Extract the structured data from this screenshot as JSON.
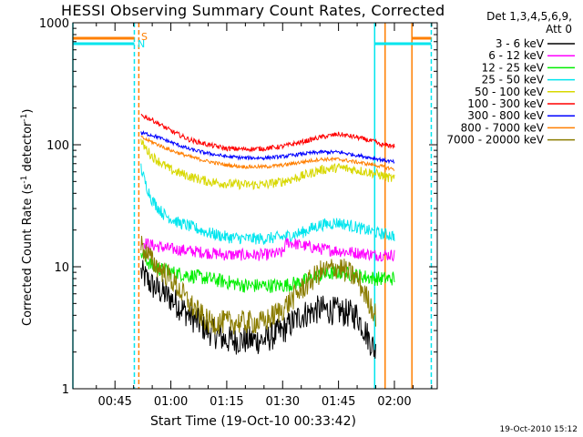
{
  "chart_data": {
    "type": "line",
    "title": "HESSI Observing Summary Count Rates, Corrected",
    "xlabel": "Start Time (19-Oct-10 00:33:42)",
    "ylabel_main": "Corrected Count Rate (s",
    "ylabel_sup1": "-1",
    "ylabel_mid": " detector",
    "ylabel_sup2": "-1",
    "ylabel_end": ")",
    "yscale": "log",
    "ylim": [
      1,
      1000
    ],
    "xlim_minutes": [
      33.7,
      131.5
    ],
    "x_ticks": [
      {
        "m": 45,
        "label": "00:45"
      },
      {
        "m": 60,
        "label": "01:00"
      },
      {
        "m": 75,
        "label": "01:15"
      },
      {
        "m": 90,
        "label": "01:30"
      },
      {
        "m": 105,
        "label": "01:45"
      },
      {
        "m": 120,
        "label": "02:00"
      }
    ],
    "y_ticks": [
      {
        "v": 1,
        "label": "1"
      },
      {
        "v": 10,
        "label": "10"
      },
      {
        "v": 100,
        "label": "100"
      },
      {
        "v": 1000,
        "label": "1000"
      }
    ],
    "legend_header": [
      "Det 1,3,4,5,6,9,",
      "Att 0"
    ],
    "flag_labels": {
      "S": "S",
      "N": "N"
    },
    "flag_colors": {
      "S": "#ff7f00",
      "N": "#00e5ee"
    },
    "timestamp": "19-Oct-2010 15:12",
    "vertical_markers": [
      {
        "m": 33.7,
        "color": "#00e5ee",
        "dash": false
      },
      {
        "m": 50.2,
        "color": "#00e5ee",
        "dash": true
      },
      {
        "m": 51.4,
        "color": "#ff7f00",
        "dash": true
      },
      {
        "m": 114.7,
        "color": "#00e5ee",
        "dash": false
      },
      {
        "m": 117.5,
        "color": "#ff7f00",
        "dash": false
      },
      {
        "m": 124.7,
        "color": "#ff7f00",
        "dash": false
      },
      {
        "m": 129.9,
        "color": "#00e5ee",
        "dash": true
      }
    ],
    "series": [
      {
        "name": "3 - 6 keV",
        "color": "#000000",
        "x": [
          52,
          55,
          60,
          65,
          70,
          75,
          80,
          85,
          90,
          95,
          100,
          105,
          110,
          115
        ],
        "y": [
          9,
          7,
          5.5,
          4,
          3,
          2.5,
          2.5,
          2.5,
          3,
          4,
          4.5,
          4.3,
          4,
          2
        ]
      },
      {
        "name": "6 - 12 keV",
        "color": "#ff00ff",
        "x": [
          52,
          55,
          60,
          65,
          70,
          75,
          80,
          85,
          90,
          91,
          95,
          100,
          105,
          110,
          115,
          120
        ],
        "y": [
          16,
          15,
          14,
          13.5,
          13,
          12.5,
          12.5,
          12.5,
          13,
          16,
          15,
          14,
          13.5,
          13,
          12.5,
          12.5
        ]
      },
      {
        "name": "12 - 25 keV",
        "color": "#00ee00",
        "x": [
          52,
          55,
          60,
          65,
          70,
          75,
          80,
          85,
          90,
          95,
          100,
          105,
          110,
          115,
          120
        ],
        "y": [
          13,
          10,
          9,
          8.5,
          8,
          7.5,
          7,
          7,
          7,
          7.5,
          8.5,
          9,
          8.5,
          8,
          8
        ]
      },
      {
        "name": "25 - 50 keV",
        "color": "#00e5ee",
        "x": [
          52,
          53,
          55,
          58,
          62,
          66,
          70,
          75,
          80,
          85,
          90,
          95,
          100,
          105,
          110,
          115,
          120
        ],
        "y": [
          65,
          50,
          35,
          27,
          23,
          21,
          19,
          17.5,
          17,
          17,
          17.5,
          19,
          22,
          23,
          21,
          19,
          18
        ]
      },
      {
        "name": "50 - 100 keV",
        "color": "#d8d800",
        "x": [
          52,
          55,
          60,
          65,
          70,
          75,
          80,
          85,
          90,
          95,
          100,
          105,
          110,
          115,
          120
        ],
        "y": [
          105,
          80,
          62,
          55,
          50,
          48,
          47,
          47,
          50,
          55,
          62,
          65,
          62,
          58,
          52
        ]
      },
      {
        "name": "100 - 300 keV",
        "color": "#ff0000",
        "x": [
          52,
          55,
          60,
          65,
          70,
          75,
          80,
          85,
          90,
          95,
          100,
          105,
          110,
          115,
          116,
          120
        ],
        "y": [
          175,
          160,
          130,
          110,
          100,
          93,
          92,
          93,
          97,
          105,
          115,
          122,
          115,
          105,
          100,
          98
        ]
      },
      {
        "name": "300 - 800 keV",
        "color": "#0000ff",
        "x": [
          52,
          55,
          60,
          65,
          70,
          75,
          80,
          85,
          90,
          95,
          100,
          105,
          110,
          115,
          120
        ],
        "y": [
          125,
          120,
          105,
          92,
          85,
          80,
          78,
          78,
          80,
          84,
          87,
          87,
          82,
          77,
          72
        ]
      },
      {
        "name": "800 - 7000 keV",
        "color": "#ff7f00",
        "x": [
          52,
          55,
          60,
          65,
          70,
          75,
          80,
          85,
          90,
          95,
          100,
          105,
          110,
          115,
          120
        ],
        "y": [
          115,
          105,
          90,
          80,
          73,
          68,
          66,
          66,
          68,
          72,
          76,
          76,
          72,
          68,
          63
        ]
      },
      {
        "name": "7000 - 20000 keV",
        "color": "#8b7d00",
        "x": [
          52,
          55,
          60,
          65,
          70,
          75,
          80,
          85,
          90,
          95,
          100,
          105,
          110,
          115
        ],
        "y": [
          15,
          11,
          8,
          5,
          3.5,
          3.5,
          3.5,
          3.5,
          4.5,
          6.5,
          9,
          10,
          8,
          4
        ]
      }
    ]
  }
}
